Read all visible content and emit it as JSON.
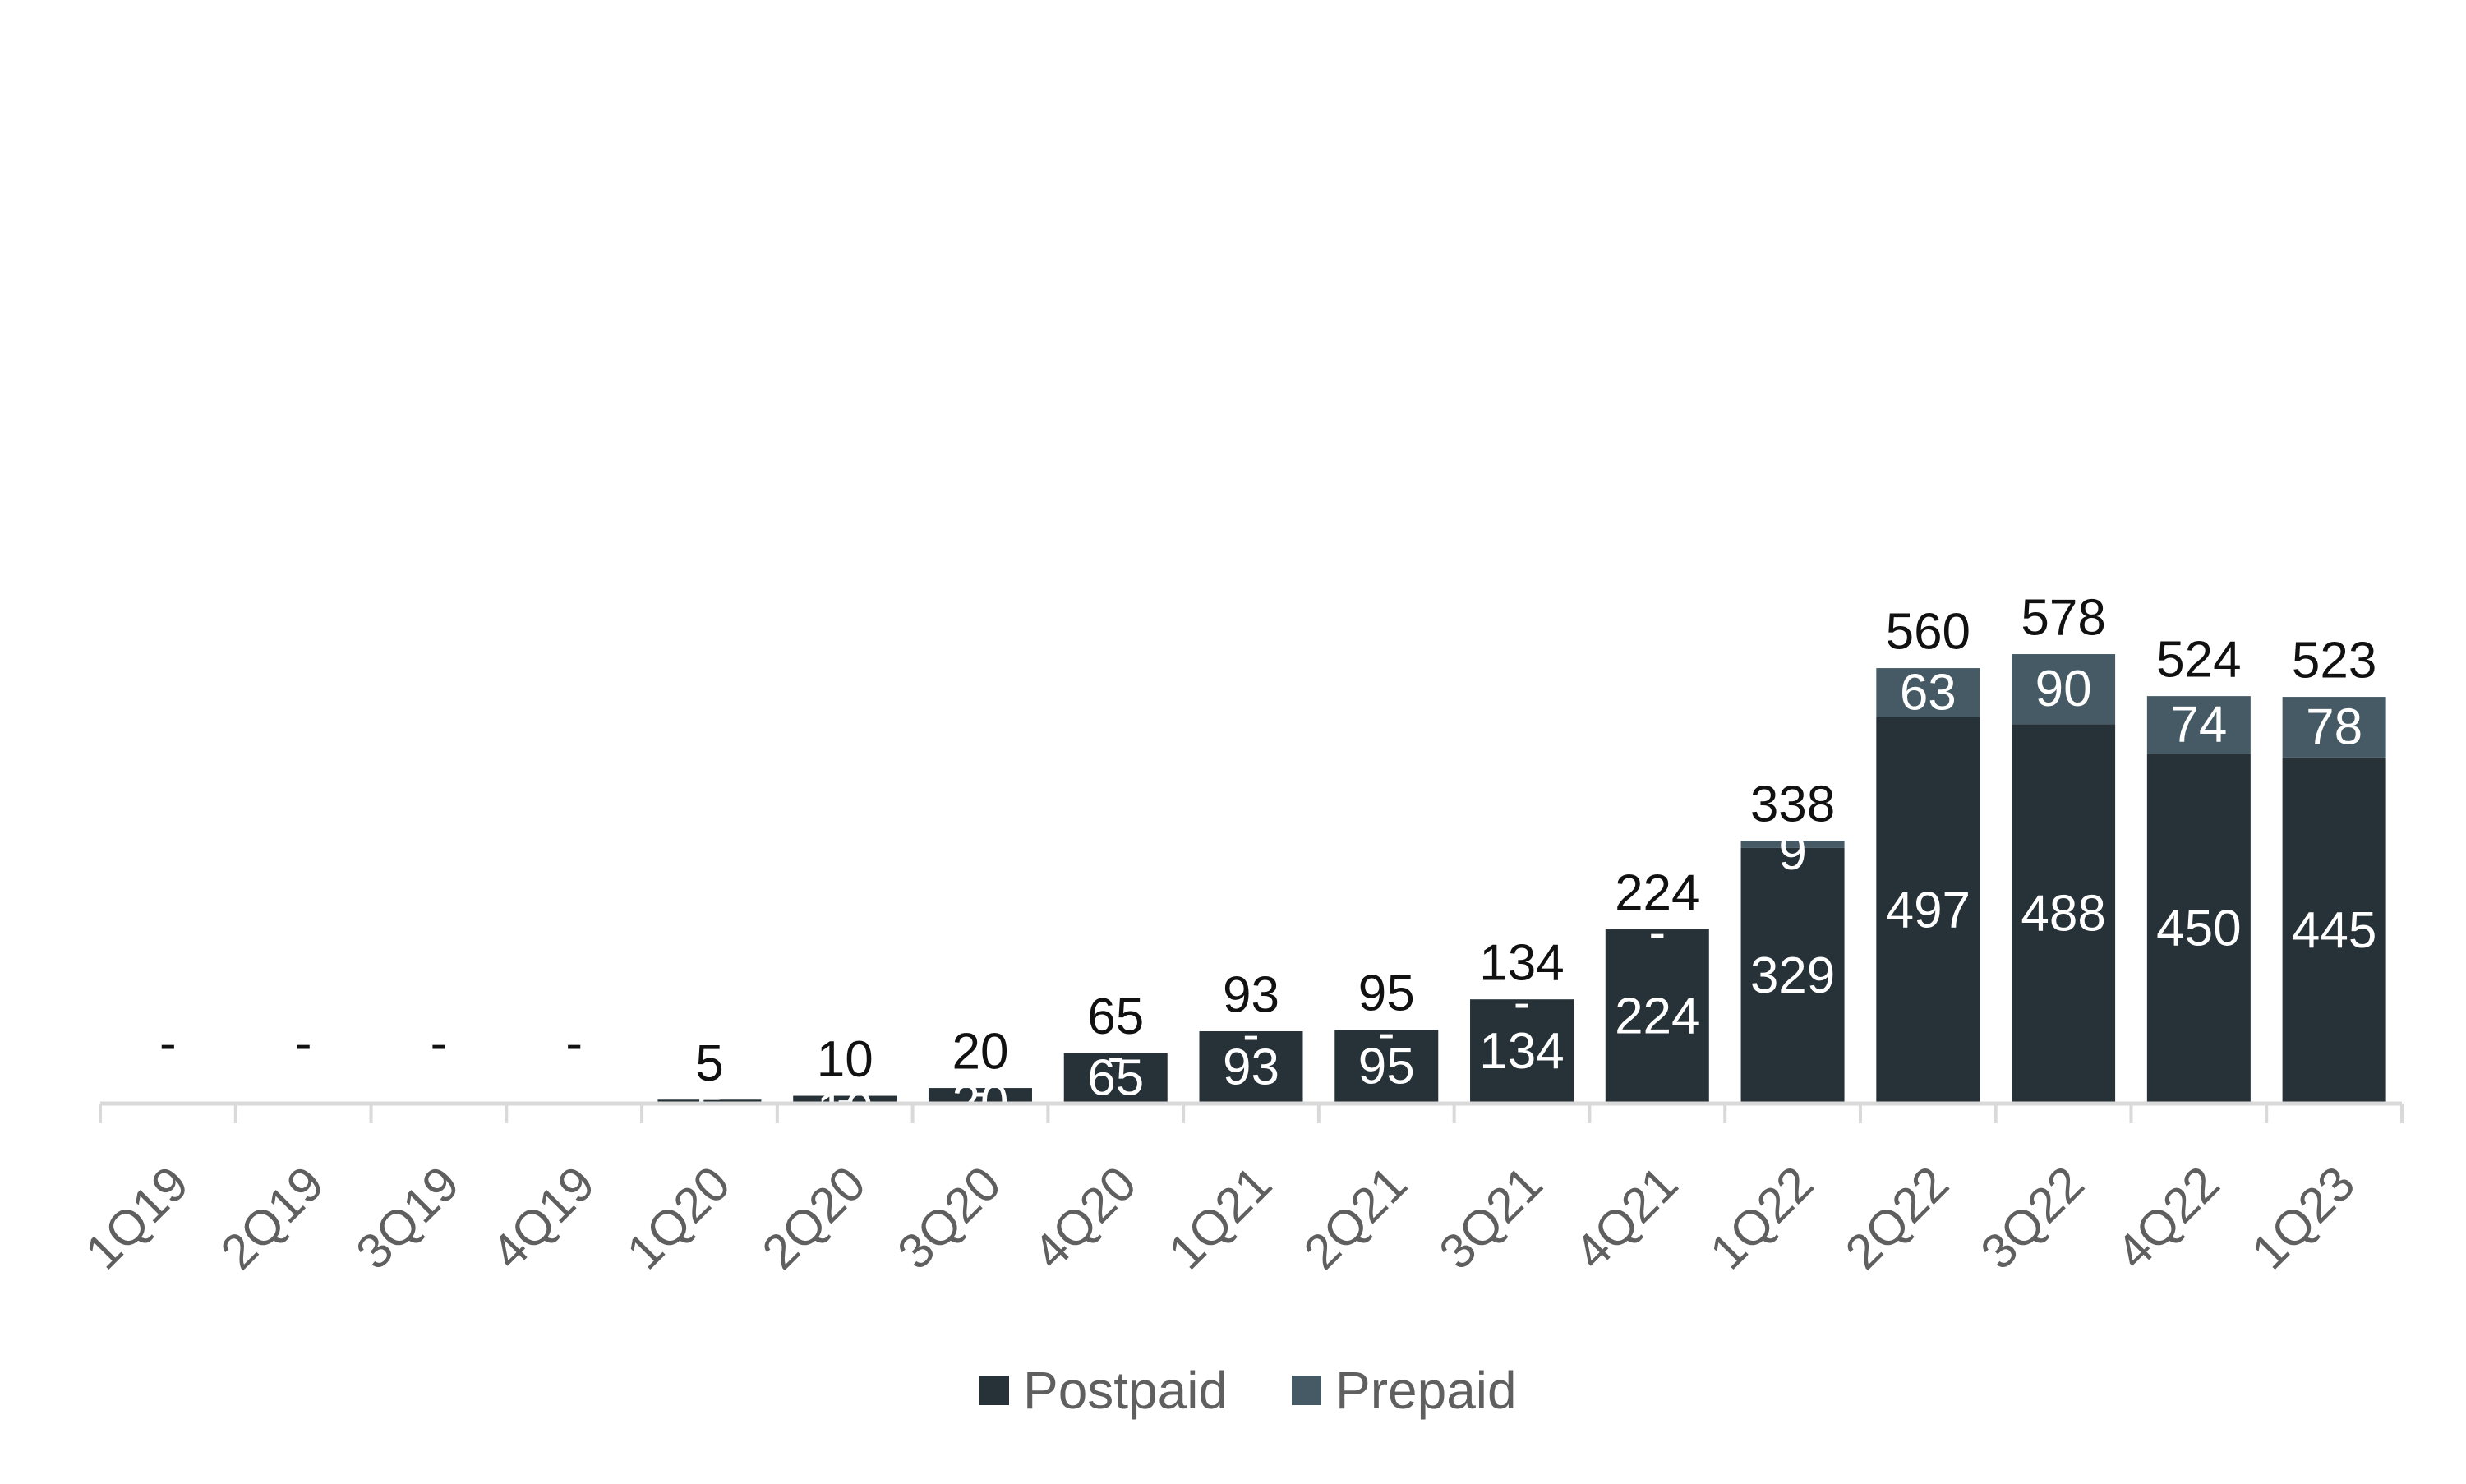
{
  "chart_data": {
    "type": "bar",
    "stacked": true,
    "categories": [
      "1Q19",
      "2Q19",
      "3Q19",
      "4Q19",
      "1Q20",
      "2Q20",
      "3Q20",
      "4Q20",
      "1Q21",
      "2Q21",
      "3Q21",
      "4Q21",
      "1Q22",
      "2Q22",
      "3Q22",
      "4Q22",
      "1Q23"
    ],
    "series": [
      {
        "name": "Postpaid",
        "color": "#263238",
        "values": [
          0,
          0,
          0,
          0,
          5,
          10,
          20,
          65,
          93,
          95,
          134,
          224,
          329,
          497,
          488,
          450,
          445
        ],
        "labels": [
          "-",
          "-",
          "-",
          "-",
          "5",
          "10",
          "20",
          "65",
          "93",
          "95",
          "134",
          "224",
          "329",
          "497",
          "488",
          "450",
          "445"
        ]
      },
      {
        "name": "Prepaid",
        "color": "#455a64",
        "values": [
          0,
          0,
          0,
          0,
          0,
          0,
          0,
          0,
          0,
          0,
          0,
          0,
          9,
          63,
          90,
          74,
          78
        ],
        "labels": [
          "-",
          "-",
          "-",
          "-",
          "-",
          "-",
          "-",
          "-",
          "-",
          "-",
          "-",
          "-",
          "9",
          "63",
          "90",
          "74",
          "78"
        ]
      }
    ],
    "totals": [
      0,
      0,
      0,
      0,
      5,
      10,
      20,
      65,
      93,
      95,
      134,
      224,
      338,
      560,
      578,
      524,
      523
    ],
    "total_labels": [
      "-",
      "-",
      "-",
      "-",
      "5",
      "10",
      "20",
      "65",
      "93",
      "95",
      "134",
      "224",
      "338",
      "560",
      "578",
      "524",
      "523"
    ],
    "ylim": [
      0,
      640
    ],
    "legend_position": "bottom-center",
    "grid": false,
    "axis_color": "#d9d9d9",
    "tick_rotation": "-45"
  }
}
